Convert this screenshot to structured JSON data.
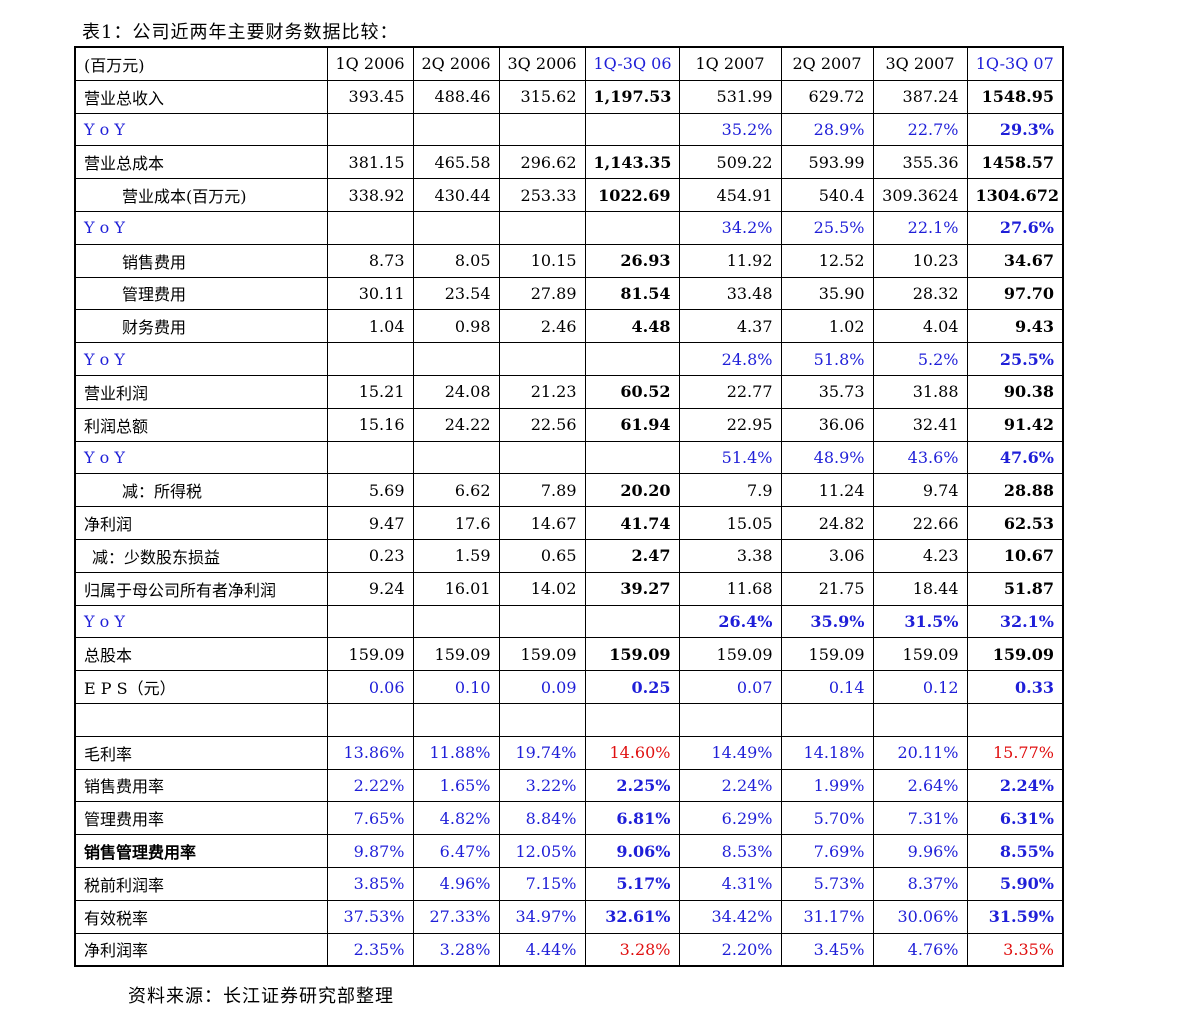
{
  "caption": "表1：公司近两年主要财务数据比较：",
  "source": "资料来源：长江证券研究部整理",
  "header": [
    "(百万元)",
    "1Q 2006",
    "2Q 2006",
    "3Q 2006",
    "1Q-3Q 06",
    "1Q 2007",
    "2Q 2007",
    "3Q 2007",
    "1Q-3Q 07"
  ],
  "rows": [
    {
      "label": "营业总收入",
      "indent": 0,
      "style": "plain",
      "values": [
        "393.45",
        "488.46",
        "315.62",
        "1,197.53",
        "531.99",
        "629.72",
        "387.24",
        "1548.95"
      ]
    },
    {
      "label": "Y o Y",
      "indent": 0,
      "style": "yoy",
      "values": [
        "",
        "",
        "",
        "",
        "35.2%",
        "28.9%",
        "22.7%",
        "29.3%"
      ]
    },
    {
      "label": "营业总成本",
      "indent": 0,
      "style": "plain",
      "values": [
        "381.15",
        "465.58",
        "296.62",
        "1,143.35",
        "509.22",
        "593.99",
        "355.36",
        "1458.57"
      ]
    },
    {
      "label": "营业成本(百万元)",
      "indent": 1,
      "style": "plain",
      "values": [
        "338.92",
        "430.44",
        "253.33",
        "1022.69",
        "454.91",
        "540.4",
        "309.3624",
        "1304.672"
      ]
    },
    {
      "label": "Y o Y",
      "indent": 0,
      "style": "yoy",
      "values": [
        "",
        "",
        "",
        "",
        "34.2%",
        "25.5%",
        "22.1%",
        "27.6%"
      ]
    },
    {
      "label": "销售费用",
      "indent": 1,
      "style": "plain",
      "values": [
        "8.73",
        "8.05",
        "10.15",
        "26.93",
        "11.92",
        "12.52",
        "10.23",
        "34.67"
      ]
    },
    {
      "label": "管理费用",
      "indent": 1,
      "style": "plain",
      "values": [
        "30.11",
        "23.54",
        "27.89",
        "81.54",
        "33.48",
        "35.90",
        "28.32",
        "97.70"
      ]
    },
    {
      "label": "财务费用",
      "indent": 1,
      "style": "plain",
      "values": [
        "1.04",
        "0.98",
        "2.46",
        "4.48",
        "4.37",
        "1.02",
        "4.04",
        "9.43"
      ]
    },
    {
      "label": "Y o Y",
      "indent": 0,
      "style": "yoy",
      "values": [
        "",
        "",
        "",
        "",
        "24.8%",
        "51.8%",
        "5.2%",
        "25.5%"
      ]
    },
    {
      "label": "营业利润",
      "indent": 0,
      "style": "plain",
      "values": [
        "15.21",
        "24.08",
        "21.23",
        "60.52",
        "22.77",
        "35.73",
        "31.88",
        "90.38"
      ]
    },
    {
      "label": "利润总额",
      "indent": 0,
      "style": "plain",
      "values": [
        "15.16",
        "24.22",
        "22.56",
        "61.94",
        "22.95",
        "36.06",
        "32.41",
        "91.42"
      ]
    },
    {
      "label": "Y o Y",
      "indent": 0,
      "style": "yoy",
      "values": [
        "",
        "",
        "",
        "",
        "51.4%",
        "48.9%",
        "43.6%",
        "47.6%"
      ]
    },
    {
      "label": "减：所得税",
      "indent": 1,
      "style": "plain",
      "values": [
        "5.69",
        "6.62",
        "7.89",
        "20.20",
        "7.9",
        "11.24",
        "9.74",
        "28.88"
      ]
    },
    {
      "label": "净利润",
      "indent": 0,
      "style": "plain",
      "values": [
        "9.47",
        "17.6",
        "14.67",
        "41.74",
        "15.05",
        "24.82",
        "22.66",
        "62.53"
      ]
    },
    {
      "label": "减：少数股东损益",
      "indent": 2,
      "style": "plain",
      "values": [
        "0.23",
        "1.59",
        "0.65",
        "2.47",
        "3.38",
        "3.06",
        "4.23",
        "10.67"
      ]
    },
    {
      "label": "归属于母公司所有者净利润",
      "indent": 0,
      "style": "plain",
      "values": [
        "9.24",
        "16.01",
        "14.02",
        "39.27",
        "11.68",
        "21.75",
        "18.44",
        "51.87"
      ]
    },
    {
      "label": "Y o Y",
      "indent": 0,
      "style": "yoybold",
      "values": [
        "",
        "",
        "",
        "",
        "26.4%",
        "35.9%",
        "31.5%",
        "32.1%"
      ]
    },
    {
      "label": "总股本",
      "indent": 0,
      "style": "plain",
      "values": [
        "159.09",
        "159.09",
        "159.09",
        "159.09",
        "159.09",
        "159.09",
        "159.09",
        "159.09"
      ]
    },
    {
      "label": "E P S（元）",
      "indent": 0,
      "style": "blueall",
      "values": [
        "0.06",
        "0.10",
        "0.09",
        "0.25",
        "0.07",
        "0.14",
        "0.12",
        "0.33"
      ]
    },
    {
      "label": "",
      "indent": 0,
      "style": "plain",
      "values": [
        "",
        "",
        "",
        "",
        "",
        "",
        "",
        ""
      ]
    },
    {
      "label": "毛利率",
      "indent": 0,
      "style": "ratio_red",
      "values": [
        "13.86%",
        "11.88%",
        "19.74%",
        "14.60%",
        "14.49%",
        "14.18%",
        "20.11%",
        "15.77%"
      ]
    },
    {
      "label": "销售费用率",
      "indent": 0,
      "style": "ratio",
      "values": [
        "2.22%",
        "1.65%",
        "3.22%",
        "2.25%",
        "2.24%",
        "1.99%",
        "2.64%",
        "2.24%"
      ]
    },
    {
      "label": "管理费用率",
      "indent": 0,
      "style": "ratio",
      "values": [
        "7.65%",
        "4.82%",
        "8.84%",
        "6.81%",
        "6.29%",
        "5.70%",
        "7.31%",
        "6.31%"
      ]
    },
    {
      "label": "销售管理费用率",
      "indent": 0,
      "style": "ratio_boldlabel",
      "values": [
        "9.87%",
        "6.47%",
        "12.05%",
        "9.06%",
        "8.53%",
        "7.69%",
        "9.96%",
        "8.55%"
      ]
    },
    {
      "label": "税前利润率",
      "indent": 0,
      "style": "ratio",
      "values": [
        "3.85%",
        "4.96%",
        "7.15%",
        "5.17%",
        "4.31%",
        "5.73%",
        "8.37%",
        "5.90%"
      ]
    },
    {
      "label": "有效税率",
      "indent": 0,
      "style": "ratio",
      "values": [
        "37.53%",
        "27.33%",
        "34.97%",
        "32.61%",
        "34.42%",
        "31.17%",
        "30.06%",
        "31.59%"
      ]
    },
    {
      "label": "净利润率",
      "indent": 0,
      "style": "ratio_red",
      "values": [
        "2.35%",
        "3.28%",
        "4.44%",
        "3.28%",
        "2.20%",
        "3.45%",
        "4.76%",
        "3.35%"
      ]
    }
  ],
  "colors": {
    "blue": "#1f1fd8",
    "red": "#e01010",
    "text": "#000000"
  }
}
